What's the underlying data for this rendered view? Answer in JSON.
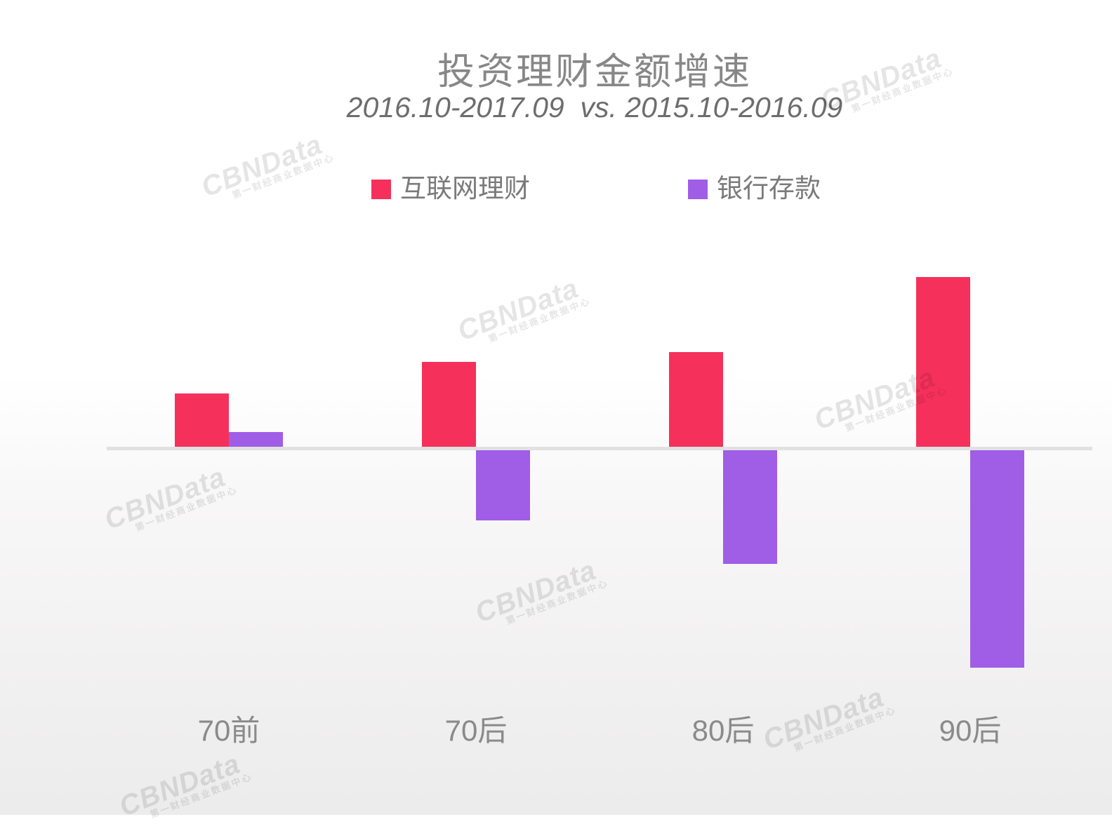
{
  "title": "投资理财金额增速",
  "subtitle": "2016.10-2017.09  vs. 2015.10-2016.09",
  "legend": [
    {
      "label": "互联网理财",
      "color": "#F5315B"
    },
    {
      "label": "银行存款",
      "color": "#A05DE6"
    }
  ],
  "watermark": {
    "text": "CBNData",
    "subtext": "第一财经商业数据中心"
  },
  "chart_data": {
    "type": "bar",
    "title": "投资理财金额增速",
    "subtitle": "2016.10-2017.09  vs. 2015.10-2016.09",
    "categories": [
      "70前",
      "70后",
      "80后",
      "90后"
    ],
    "category_keys": [
      "70pre",
      "70post",
      "80post",
      "90post"
    ],
    "series": [
      {
        "name": "互联网理财",
        "key": "internet",
        "color": "#F5315B",
        "values": [
          76,
          121,
          135,
          242
        ]
      },
      {
        "name": "银行存款",
        "key": "bank",
        "color": "#A05DE6",
        "values": [
          21,
          -100,
          -162,
          -310
        ]
      }
    ],
    "xlabel": "",
    "ylabel": "",
    "value_axis_note": "axis unlabeled in source image — values are relative magnitudes estimated from bar heights (pixels above/below zero line)",
    "value_range_estimate": [
      -310,
      242
    ],
    "baseline": 0,
    "grid": false,
    "legend_position": "top-center"
  }
}
